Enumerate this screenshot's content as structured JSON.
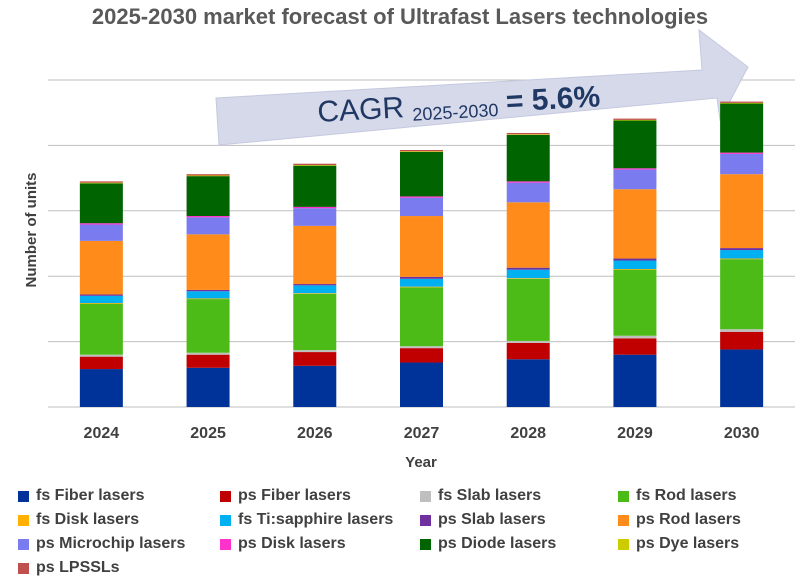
{
  "chart_data": {
    "type": "bar",
    "stacked": true,
    "title": "2025-2030 market forecast of Ultrafast Lasers technologies",
    "xlabel": "Year",
    "ylabel": "Number of units",
    "categories": [
      "2024",
      "2025",
      "2026",
      "2027",
      "2028",
      "2029",
      "2030"
    ],
    "ylim": [
      0,
      5
    ],
    "grid": true,
    "legend_position": "bottom",
    "annotation": {
      "text_main": "CAGR",
      "text_sub": "2025-2030",
      "text_value": "= 5.6%"
    },
    "series": [
      {
        "name": "fs Fiber lasers",
        "color": "#003399",
        "values": [
          0.58,
          0.6,
          0.63,
          0.68,
          0.73,
          0.8,
          0.88
        ]
      },
      {
        "name": "ps Fiber lasers",
        "color": "#C00000",
        "values": [
          0.19,
          0.2,
          0.21,
          0.22,
          0.25,
          0.25,
          0.27
        ]
      },
      {
        "name": "fs Slab lasers",
        "color": "#BFBFBF",
        "values": [
          0.03,
          0.03,
          0.03,
          0.03,
          0.03,
          0.04,
          0.04
        ]
      },
      {
        "name": "fs Rod lasers",
        "color": "#4CBB17",
        "values": [
          0.78,
          0.82,
          0.86,
          0.9,
          0.95,
          1.01,
          1.07
        ]
      },
      {
        "name": "fs Disk lasers",
        "color": "#FFB000",
        "values": [
          0.01,
          0.01,
          0.01,
          0.01,
          0.01,
          0.01,
          0.01
        ]
      },
      {
        "name": "fs Ti:sapphire lasers",
        "color": "#00B0F0",
        "values": [
          0.11,
          0.11,
          0.12,
          0.12,
          0.13,
          0.13,
          0.13
        ]
      },
      {
        "name": "ps Slab lasers",
        "color": "#7030A0",
        "values": [
          0.02,
          0.02,
          0.02,
          0.03,
          0.03,
          0.03,
          0.03
        ]
      },
      {
        "name": "ps Rod lasers",
        "color": "#FF8C1A",
        "values": [
          0.82,
          0.85,
          0.89,
          0.93,
          1.0,
          1.06,
          1.13
        ]
      },
      {
        "name": "ps Microchip lasers",
        "color": "#7B7BF0",
        "values": [
          0.25,
          0.26,
          0.27,
          0.28,
          0.3,
          0.3,
          0.31
        ]
      },
      {
        "name": "ps Disk lasers",
        "color": "#FF33CC",
        "values": [
          0.02,
          0.02,
          0.02,
          0.02,
          0.02,
          0.02,
          0.02
        ]
      },
      {
        "name": "ps Diode lasers",
        "color": "#006400",
        "values": [
          0.61,
          0.61,
          0.63,
          0.68,
          0.71,
          0.73,
          0.75
        ]
      },
      {
        "name": "ps Dye lasers",
        "color": "#CCCC00",
        "values": [
          0.01,
          0.01,
          0.01,
          0.01,
          0.01,
          0.01,
          0.01
        ]
      },
      {
        "name": "ps LPSSLs",
        "color": "#C0504D",
        "values": [
          0.02,
          0.02,
          0.02,
          0.02,
          0.02,
          0.02,
          0.02
        ]
      }
    ]
  }
}
